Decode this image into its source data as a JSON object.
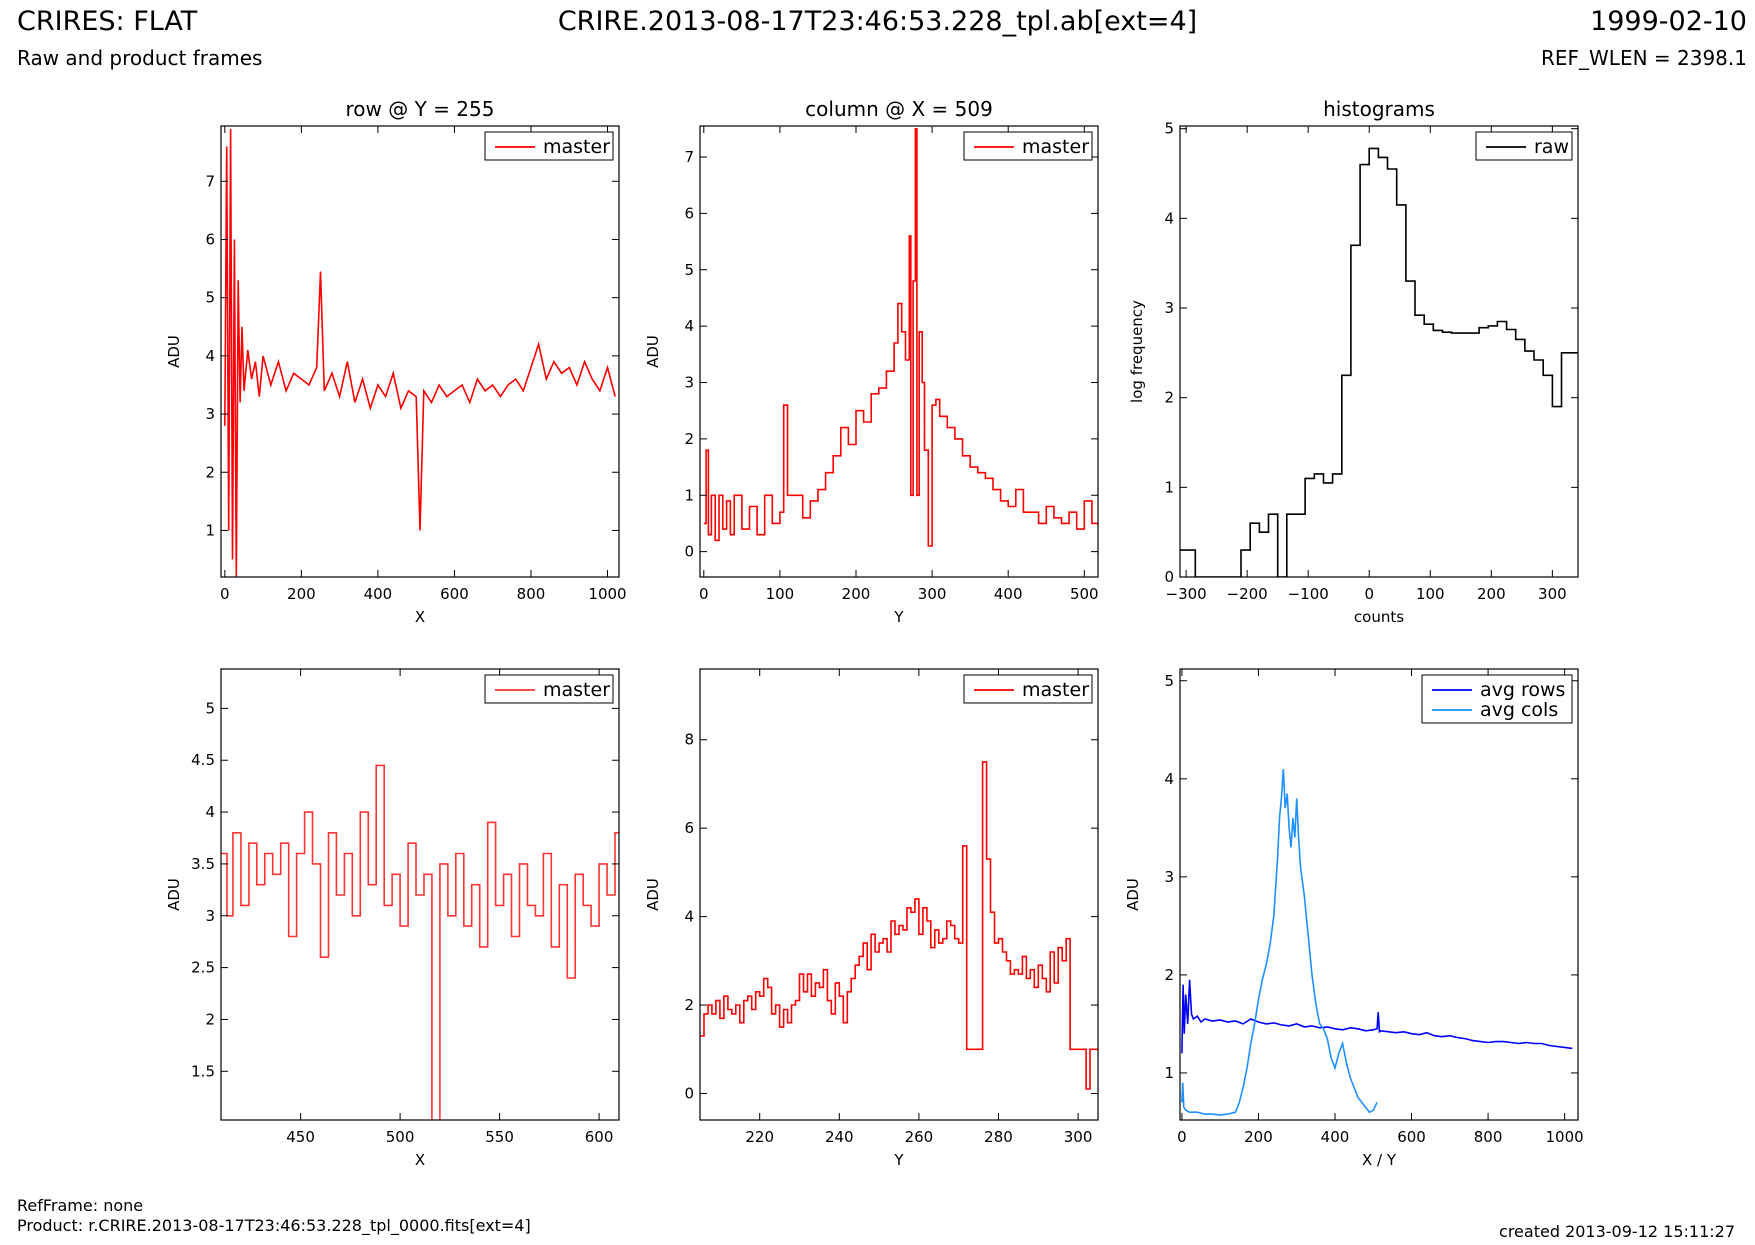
{
  "header": {
    "title_left": "CRIRES: FLAT",
    "title_center": "CRIRE.2013-08-17T23:46:53.228_tpl.ab[ext=4]",
    "title_right": "1999-02-10",
    "subtitle_left": "Raw and product frames",
    "subtitle_right": "REF_WLEN = 2398.1"
  },
  "footer": {
    "refframe": "RefFrame: none",
    "product": "Product: r.CRIRE.2013-08-17T23:46:53.228_tpl_0000.fits[ext=4]",
    "created": "created 2013-09-12 15:11:27"
  },
  "colors": {
    "master": "#ff0000",
    "raw": "#000000",
    "avg_rows": "#0000ff",
    "avg_cols": "#1e90ff"
  },
  "chart_data": [
    {
      "id": "row",
      "type": "line",
      "title": "row @ Y = 255",
      "xlabel": "X",
      "ylabel": "ADU",
      "xlim": [
        -10,
        1030
      ],
      "ylim": [
        0.2,
        7.95
      ],
      "xticks": [
        0,
        200,
        400,
        600,
        800,
        1000
      ],
      "yticks": [
        1,
        2,
        3,
        4,
        5,
        6,
        7
      ],
      "legend": "top-right",
      "series": [
        {
          "name": "master",
          "color": "#ff0000",
          "step": false,
          "x": [
            0,
            5,
            10,
            15,
            20,
            25,
            30,
            35,
            40,
            45,
            50,
            60,
            70,
            80,
            90,
            100,
            120,
            140,
            160,
            180,
            200,
            220,
            240,
            250,
            260,
            280,
            300,
            320,
            340,
            360,
            380,
            400,
            420,
            440,
            460,
            480,
            500,
            510,
            520,
            540,
            560,
            580,
            600,
            620,
            640,
            660,
            680,
            700,
            720,
            740,
            760,
            780,
            800,
            820,
            840,
            860,
            880,
            900,
            920,
            940,
            960,
            980,
            1000,
            1020
          ],
          "y": [
            2.8,
            7.6,
            1.0,
            7.9,
            0.5,
            6.0,
            0.2,
            5.3,
            3.2,
            4.5,
            3.4,
            4.1,
            3.6,
            3.9,
            3.3,
            4.0,
            3.5,
            3.9,
            3.4,
            3.7,
            3.6,
            3.5,
            3.8,
            5.45,
            3.4,
            3.7,
            3.3,
            3.9,
            3.2,
            3.6,
            3.1,
            3.5,
            3.3,
            3.7,
            3.1,
            3.4,
            3.3,
            1.0,
            3.4,
            3.2,
            3.5,
            3.3,
            3.4,
            3.5,
            3.2,
            3.6,
            3.4,
            3.5,
            3.3,
            3.5,
            3.6,
            3.4,
            3.8,
            4.2,
            3.6,
            3.9,
            3.7,
            3.8,
            3.5,
            3.9,
            3.6,
            3.4,
            3.8,
            3.3
          ]
        }
      ]
    },
    {
      "id": "column",
      "type": "line",
      "title": "column @ X = 509",
      "xlabel": "Y",
      "ylabel": "ADU",
      "xlim": [
        -5,
        518
      ],
      "ylim": [
        -0.45,
        7.55
      ],
      "xticks": [
        0,
        100,
        200,
        300,
        400,
        500
      ],
      "yticks": [
        0,
        1,
        2,
        3,
        4,
        5,
        6,
        7
      ],
      "legend": "top-right",
      "series": [
        {
          "name": "master",
          "color": "#ff0000",
          "step": true,
          "x": [
            0,
            3,
            6,
            10,
            15,
            20,
            25,
            30,
            35,
            40,
            50,
            60,
            70,
            80,
            90,
            100,
            105,
            110,
            115,
            120,
            130,
            140,
            150,
            160,
            170,
            180,
            190,
            200,
            210,
            220,
            230,
            240,
            250,
            255,
            260,
            265,
            270,
            272,
            275,
            278,
            280,
            283,
            287,
            290,
            295,
            300,
            305,
            310,
            320,
            330,
            340,
            350,
            360,
            370,
            380,
            390,
            400,
            410,
            420,
            430,
            440,
            450,
            460,
            470,
            480,
            490,
            500,
            510
          ],
          "y": [
            0.5,
            1.8,
            0.3,
            1.0,
            0.2,
            1.0,
            0.4,
            0.9,
            0.3,
            1.0,
            0.4,
            0.8,
            0.3,
            1.0,
            0.5,
            0.7,
            2.6,
            1.0,
            1.0,
            1.0,
            0.6,
            0.9,
            1.1,
            1.4,
            1.7,
            2.2,
            1.9,
            2.5,
            2.3,
            2.8,
            2.9,
            3.2,
            3.7,
            4.4,
            3.9,
            3.4,
            5.6,
            1.0,
            4.8,
            7.5,
            1.0,
            3.9,
            3.0,
            1.8,
            0.1,
            2.6,
            2.7,
            2.4,
            2.2,
            2.0,
            1.7,
            1.5,
            1.4,
            1.3,
            1.1,
            0.9,
            0.8,
            1.1,
            0.7,
            0.7,
            0.5,
            0.8,
            0.6,
            0.5,
            0.7,
            0.4,
            0.9,
            0.5
          ]
        }
      ]
    },
    {
      "id": "histograms",
      "type": "line",
      "title": "histograms",
      "xlabel": "counts",
      "ylabel": "log frequency",
      "xlim": [
        -310,
        342
      ],
      "ylim": [
        0,
        5.03
      ],
      "xticks": [
        -300,
        -200,
        -100,
        0,
        100,
        200,
        300
      ],
      "yticks": [
        0,
        1,
        2,
        3,
        4,
        5
      ],
      "legend": "top-right",
      "series": [
        {
          "name": "raw",
          "color": "#000000",
          "step": true,
          "x": [
            -310,
            -295,
            -285,
            -270,
            -255,
            -240,
            -225,
            -210,
            -195,
            -180,
            -165,
            -150,
            -135,
            -120,
            -105,
            -90,
            -75,
            -60,
            -45,
            -30,
            -15,
            0,
            15,
            30,
            45,
            60,
            75,
            90,
            105,
            120,
            135,
            150,
            165,
            180,
            195,
            210,
            225,
            240,
            255,
            270,
            285,
            300,
            315,
            330
          ],
          "y": [
            0.3,
            0.3,
            0,
            0,
            0,
            0,
            0,
            0.3,
            0.6,
            0.5,
            0.7,
            0,
            0.7,
            0.7,
            1.1,
            1.15,
            1.05,
            1.15,
            2.25,
            3.7,
            4.6,
            4.78,
            4.68,
            4.55,
            4.15,
            3.3,
            2.92,
            2.82,
            2.75,
            2.73,
            2.72,
            2.72,
            2.72,
            2.78,
            2.8,
            2.85,
            2.76,
            2.65,
            2.52,
            2.42,
            2.25,
            1.9,
            2.5,
            2.5
          ]
        }
      ]
    },
    {
      "id": "row-zoom",
      "type": "line",
      "title": "",
      "xlabel": "X",
      "ylabel": "ADU",
      "xlim": [
        410,
        610
      ],
      "ylim": [
        1.03,
        5.38
      ],
      "xticks": [
        450,
        500,
        550,
        600
      ],
      "yticks": [
        1.5,
        2.0,
        2.5,
        3.0,
        3.5,
        4.0,
        4.5,
        5.0
      ],
      "legend": "top-right",
      "series": [
        {
          "name": "master",
          "color": "#ff3333",
          "step": true,
          "x": [
            410,
            413,
            416,
            420,
            424,
            428,
            432,
            436,
            440,
            444,
            448,
            452,
            456,
            460,
            464,
            468,
            472,
            476,
            480,
            484,
            488,
            492,
            496,
            500,
            504,
            508,
            512,
            516,
            520,
            524,
            528,
            532,
            536,
            540,
            544,
            548,
            552,
            556,
            560,
            564,
            568,
            572,
            576,
            580,
            584,
            588,
            592,
            596,
            600,
            604,
            608
          ],
          "y": [
            3.6,
            3.0,
            3.8,
            3.1,
            3.7,
            3.3,
            3.6,
            3.4,
            3.7,
            2.8,
            3.6,
            4.0,
            3.5,
            2.6,
            3.8,
            3.2,
            3.6,
            3.0,
            4.0,
            3.3,
            4.45,
            3.1,
            3.4,
            2.9,
            3.7,
            3.2,
            3.4,
            1.0,
            3.5,
            3.0,
            3.6,
            2.9,
            3.3,
            2.7,
            3.9,
            3.1,
            3.4,
            2.8,
            3.5,
            3.1,
            3.0,
            3.6,
            2.7,
            3.3,
            2.4,
            3.4,
            3.1,
            2.9,
            3.5,
            3.2,
            3.8
          ]
        }
      ]
    },
    {
      "id": "column-zoom",
      "type": "line",
      "title": "",
      "xlabel": "Y",
      "ylabel": "ADU",
      "xlim": [
        205,
        305
      ],
      "ylim": [
        -0.6,
        9.6
      ],
      "xticks": [
        220,
        240,
        260,
        280,
        300
      ],
      "yticks": [
        0,
        2,
        4,
        6,
        8
      ],
      "legend": "top-right",
      "series": [
        {
          "name": "master",
          "color": "#ff0000",
          "step": true,
          "x": [
            205,
            206,
            207,
            208,
            209,
            210,
            211,
            212,
            213,
            214,
            215,
            216,
            217,
            218,
            219,
            220,
            221,
            222,
            223,
            224,
            225,
            226,
            227,
            228,
            229,
            230,
            231,
            232,
            233,
            234,
            235,
            236,
            237,
            238,
            239,
            240,
            241,
            242,
            243,
            244,
            245,
            246,
            247,
            248,
            249,
            250,
            251,
            252,
            253,
            254,
            255,
            256,
            257,
            258,
            259,
            260,
            261,
            262,
            263,
            264,
            265,
            266,
            267,
            268,
            269,
            270,
            271,
            272,
            273,
            274,
            275,
            276,
            277,
            278,
            279,
            280,
            281,
            282,
            283,
            284,
            285,
            286,
            287,
            288,
            289,
            290,
            291,
            292,
            293,
            294,
            295,
            296,
            297,
            298,
            299,
            300,
            301,
            302,
            303,
            304
          ],
          "y": [
            1.3,
            1.8,
            2.0,
            1.8,
            2.1,
            1.7,
            2.2,
            1.9,
            1.8,
            2.0,
            1.6,
            2.1,
            2.2,
            1.9,
            2.3,
            2.2,
            2.6,
            2.4,
            1.8,
            2.0,
            1.5,
            1.9,
            1.6,
            2.0,
            2.1,
            2.7,
            2.3,
            2.7,
            2.2,
            2.5,
            2.4,
            2.8,
            2.1,
            1.8,
            2.5,
            2.2,
            1.6,
            2.3,
            2.6,
            2.9,
            3.1,
            3.4,
            2.8,
            3.6,
            3.2,
            3.4,
            3.5,
            3.2,
            3.9,
            3.6,
            3.8,
            3.7,
            4.2,
            4.1,
            4.4,
            3.6,
            4.2,
            3.9,
            3.3,
            3.7,
            3.4,
            3.5,
            3.9,
            3.8,
            3.5,
            3.4,
            5.6,
            1.0,
            1.0,
            1.0,
            1.0,
            7.5,
            5.3,
            4.1,
            3.4,
            3.5,
            3.2,
            3.0,
            2.7,
            2.8,
            2.7,
            3.1,
            2.6,
            2.8,
            2.4,
            2.9,
            2.6,
            2.3,
            3.2,
            2.5,
            3.3,
            3.0,
            3.5,
            1.0,
            1.0,
            1.0,
            1.0,
            0.1,
            1.0,
            1.0
          ]
        }
      ]
    },
    {
      "id": "averages",
      "type": "line",
      "title": "",
      "xlabel": "X / Y",
      "ylabel": "ADU",
      "xlim": [
        -5,
        1035
      ],
      "ylim": [
        0.52,
        5.12
      ],
      "xticks": [
        0,
        200,
        400,
        600,
        800,
        1000
      ],
      "yticks": [
        1,
        2,
        3,
        4,
        5
      ],
      "legend": "top-right",
      "series": [
        {
          "name": "avg rows",
          "color": "#0000ff",
          "step": false,
          "x": [
            0,
            3,
            6,
            10,
            15,
            20,
            25,
            30,
            40,
            50,
            60,
            80,
            100,
            120,
            140,
            160,
            180,
            200,
            220,
            240,
            260,
            280,
            300,
            320,
            340,
            360,
            380,
            400,
            420,
            440,
            460,
            480,
            500,
            510,
            513,
            516,
            520,
            540,
            560,
            580,
            600,
            620,
            640,
            660,
            680,
            700,
            720,
            740,
            760,
            780,
            800,
            820,
            840,
            860,
            880,
            900,
            920,
            940,
            960,
            980,
            1000,
            1020
          ],
          "y": [
            1.2,
            1.9,
            1.4,
            1.8,
            1.5,
            1.95,
            1.6,
            1.55,
            1.58,
            1.52,
            1.55,
            1.53,
            1.54,
            1.52,
            1.53,
            1.5,
            1.55,
            1.52,
            1.5,
            1.51,
            1.49,
            1.48,
            1.5,
            1.47,
            1.48,
            1.46,
            1.47,
            1.45,
            1.44,
            1.46,
            1.45,
            1.43,
            1.44,
            1.45,
            1.62,
            1.42,
            1.43,
            1.42,
            1.41,
            1.42,
            1.4,
            1.39,
            1.41,
            1.38,
            1.37,
            1.38,
            1.36,
            1.35,
            1.33,
            1.32,
            1.31,
            1.32,
            1.32,
            1.31,
            1.3,
            1.31,
            1.3,
            1.3,
            1.28,
            1.27,
            1.26,
            1.25
          ]
        },
        {
          "name": "avg cols",
          "color": "#1e90ff",
          "step": false,
          "x": [
            0,
            2,
            5,
            10,
            20,
            40,
            60,
            80,
            100,
            120,
            140,
            150,
            160,
            170,
            180,
            190,
            200,
            210,
            220,
            230,
            240,
            250,
            255,
            260,
            265,
            270,
            275,
            280,
            285,
            290,
            295,
            300,
            305,
            310,
            320,
            330,
            340,
            350,
            360,
            370,
            380,
            390,
            400,
            410,
            420,
            430,
            440,
            450,
            460,
            470,
            480,
            490,
            500,
            510
          ],
          "y": [
            0.7,
            0.9,
            0.65,
            0.62,
            0.6,
            0.6,
            0.58,
            0.58,
            0.57,
            0.58,
            0.6,
            0.7,
            0.85,
            1.05,
            1.3,
            1.5,
            1.75,
            1.95,
            2.1,
            2.3,
            2.6,
            3.2,
            3.6,
            3.8,
            4.1,
            3.7,
            3.85,
            3.5,
            3.3,
            3.6,
            3.4,
            3.8,
            3.4,
            3.1,
            2.8,
            2.4,
            2.0,
            1.7,
            1.5,
            1.45,
            1.35,
            1.15,
            1.05,
            1.2,
            1.3,
            1.1,
            0.95,
            0.85,
            0.75,
            0.7,
            0.65,
            0.6,
            0.62,
            0.7
          ]
        }
      ]
    }
  ]
}
